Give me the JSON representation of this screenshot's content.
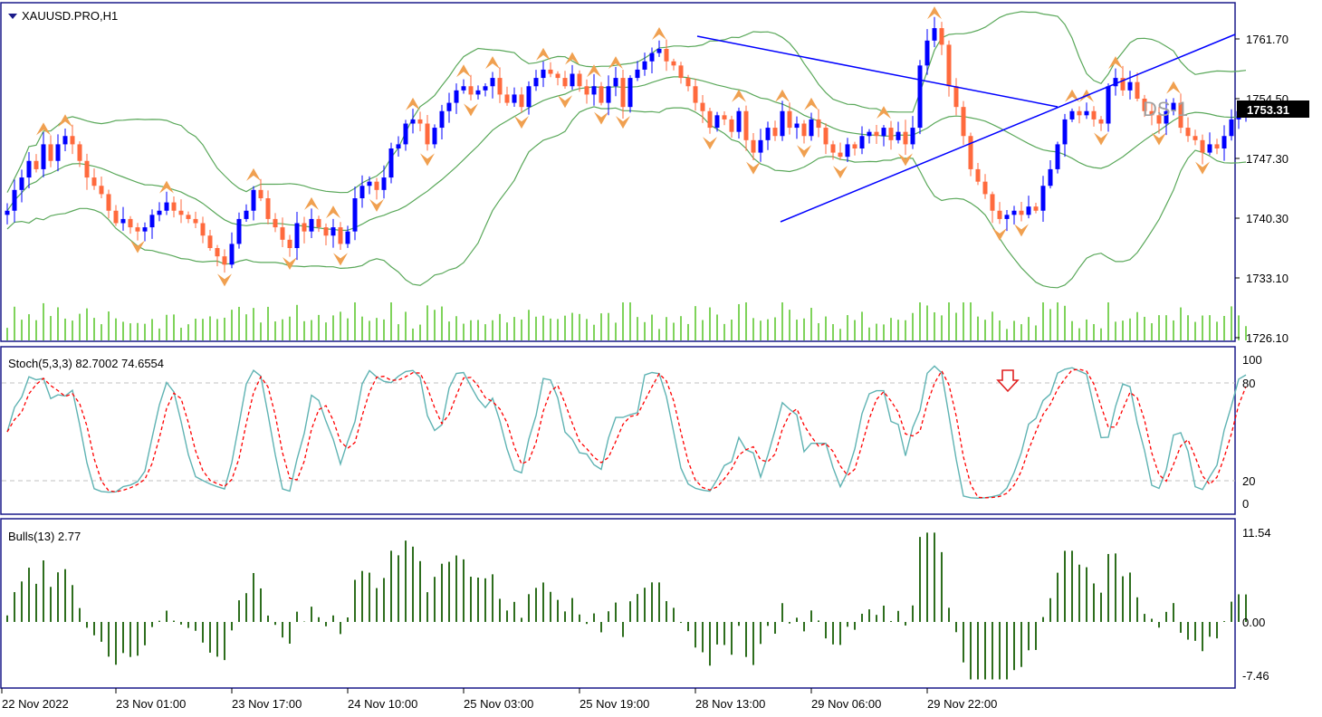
{
  "window": {
    "title": "XAUUSD.PRO,H1",
    "menu_icon": "triangle-down-icon"
  },
  "price_panel": {
    "current_price": "1753.31",
    "channel_label": "DS-1",
    "y_ticks": [
      "1761.70",
      "1754.50",
      "1747.30",
      "1740.30",
      "1733.10",
      "1726.10"
    ],
    "colors": {
      "bull": "#0000ff",
      "bear": "#ff6a3d",
      "band": "#5aa85a",
      "fractal": "#f0a050",
      "volume": "#7fd35b",
      "trendline": "#0000ff"
    }
  },
  "stoch_panel": {
    "label": "Stoch(5,3,3) 82.7002 74.6554",
    "y_ticks": [
      "100",
      "80",
      "20",
      "0"
    ],
    "signal_icon": "arrow-down-icon",
    "colors": {
      "main": "#5fb3b3",
      "signal": "#ff0000"
    }
  },
  "bulls_panel": {
    "label": "Bulls(13) 2.77",
    "y_ticks": [
      "11.54",
      "0.00",
      "-7.46"
    ],
    "colors": {
      "bar": "#2e6e1e"
    }
  },
  "x_axis": {
    "labels": [
      "22 Nov 2022",
      "23 Nov 01:00",
      "23 Nov 17:00",
      "24 Nov 10:00",
      "25 Nov 03:00",
      "25 Nov 19:00",
      "28 Nov 13:00",
      "29 Nov 06:00",
      "29 Nov 22:00"
    ]
  },
  "chart_data": {
    "type": "candlestick",
    "symbol": "XAUUSD.PRO",
    "timeframe": "H1",
    "ylim": [
      1726.1,
      1765.0
    ],
    "close": [
      1741.0,
      1743.5,
      1745.0,
      1747.0,
      1746.0,
      1749.0,
      1747.0,
      1749.0,
      1750.0,
      1749.0,
      1747.0,
      1745.0,
      1744.0,
      1743.0,
      1741.0,
      1739.5,
      1740.0,
      1739.0,
      1738.5,
      1739.0,
      1740.5,
      1741.0,
      1742.0,
      1741.0,
      1740.5,
      1740.0,
      1739.5,
      1738.0,
      1736.5,
      1735.5,
      1734.5,
      1737.0,
      1740.0,
      1741.0,
      1743.5,
      1742.5,
      1740.0,
      1739.0,
      1737.5,
      1736.5,
      1739.5,
      1738.5,
      1740.0,
      1739.0,
      1738.0,
      1739.0,
      1737.0,
      1738.5,
      1742.5,
      1744.0,
      1744.5,
      1743.5,
      1745.0,
      1748.5,
      1749.0,
      1751.5,
      1752.0,
      1751.5,
      1749.0,
      1751.0,
      1753.0,
      1754.0,
      1755.5,
      1756.0,
      1755.0,
      1755.5,
      1756.0,
      1757.0,
      1755.0,
      1754.0,
      1755.0,
      1753.5,
      1756.0,
      1757.0,
      1758.0,
      1757.5,
      1757.0,
      1756.0,
      1757.5,
      1756.0,
      1755.0,
      1756.0,
      1754.0,
      1756.0,
      1757.0,
      1753.5,
      1757.0,
      1758.0,
      1759.0,
      1760.0,
      1760.5,
      1759.0,
      1758.5,
      1757.0,
      1756.0,
      1754.0,
      1753.0,
      1751.0,
      1752.5,
      1752.0,
      1750.5,
      1753.0,
      1749.5,
      1748.0,
      1749.5,
      1751.0,
      1750.0,
      1753.0,
      1751.0,
      1751.5,
      1750.0,
      1752.0,
      1751.0,
      1749.0,
      1748.0,
      1747.5,
      1749.0,
      1748.5,
      1750.0,
      1750.5,
      1750.0,
      1751.0,
      1749.5,
      1750.5,
      1749.0,
      1751.0,
      1758.5,
      1761.5,
      1763.0,
      1761.0,
      1756.0,
      1753.5,
      1750.0,
      1746.0,
      1744.5,
      1743.0,
      1741.0,
      1740.0,
      1740.5,
      1741.0,
      1740.5,
      1741.5,
      1741.0,
      1744.0,
      1746.0,
      1749.0,
      1752.0,
      1753.0,
      1752.5,
      1753.0,
      1752.0,
      1751.5,
      1756.0,
      1757.0,
      1755.5,
      1756.5,
      1754.5,
      1753.0,
      1752.5,
      1751.5,
      1753.0,
      1754.0,
      1751.0,
      1750.0,
      1749.5,
      1748.0,
      1749.0,
      1748.5,
      1750.0,
      1752.0,
      1753.0,
      1753.31
    ],
    "volume_relative": "bars under price panel",
    "bollinger": "upper/middle/lower bands",
    "trendlines": [
      "descending upper",
      "ascending lower"
    ]
  }
}
